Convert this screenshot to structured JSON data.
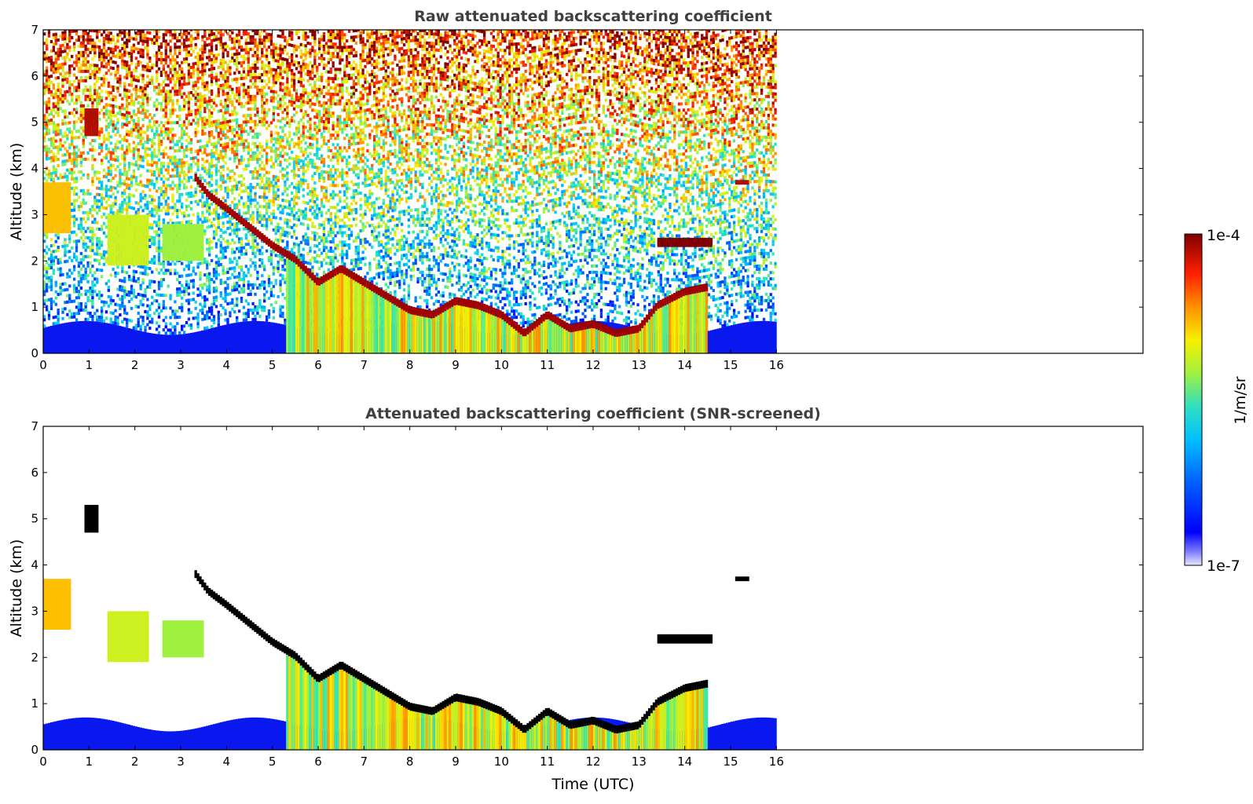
{
  "chart_data": [
    {
      "type": "heatmap",
      "title": "Raw attenuated backscattering coefficient",
      "xlabel": "",
      "ylabel": "Altitude (km)",
      "xlim": [
        0,
        24
      ],
      "ylim": [
        0,
        7
      ],
      "x_ticks": [
        "0",
        "1",
        "2",
        "3",
        "4",
        "5",
        "6",
        "7",
        "8",
        "9",
        "10",
        "11",
        "12",
        "13",
        "14",
        "15",
        "16"
      ],
      "y_ticks": [
        "0",
        "1",
        "2",
        "3",
        "4",
        "5",
        "6",
        "7"
      ],
      "data_extent_hours": [
        0,
        16
      ],
      "screened": false,
      "cloud_features": [
        {
          "name": "layer-low-early",
          "t_start": 0.0,
          "t_end": 0.6,
          "alt_km": [
            2.6,
            3.7
          ],
          "level": 0.7
        },
        {
          "name": "fall-streak-5km",
          "t_start": 0.9,
          "t_end": 1.2,
          "alt_km": [
            4.7,
            5.3
          ],
          "level": 0.95
        },
        {
          "name": "virga-1.5-2h",
          "t_start": 1.4,
          "t_end": 2.3,
          "alt_km": [
            1.9,
            3.0
          ],
          "level": 0.6
        },
        {
          "name": "layer-2.5-3.5h",
          "t_start": 2.6,
          "t_end": 3.5,
          "alt_km": [
            2.0,
            2.8
          ],
          "level": 0.55
        },
        {
          "name": "descending-cloud-base",
          "points": [
            [
              3.3,
              3.8
            ],
            [
              3.6,
              3.4
            ],
            [
              4.0,
              3.1
            ],
            [
              4.5,
              2.7
            ],
            [
              5.0,
              2.3
            ],
            [
              5.5,
              2.0
            ],
            [
              6.0,
              1.5
            ],
            [
              6.5,
              1.8
            ],
            [
              7.0,
              1.5
            ],
            [
              7.5,
              1.2
            ],
            [
              8.0,
              0.9
            ],
            [
              8.5,
              0.8
            ],
            [
              9.0,
              1.1
            ],
            [
              9.5,
              1.0
            ],
            [
              10.0,
              0.8
            ],
            [
              10.5,
              0.4
            ],
            [
              11.0,
              0.8
            ],
            [
              11.5,
              0.5
            ],
            [
              12.0,
              0.6
            ],
            [
              12.5,
              0.4
            ],
            [
              13.0,
              0.5
            ],
            [
              13.4,
              1.0
            ],
            [
              14.0,
              1.3
            ],
            [
              14.5,
              1.4
            ]
          ],
          "level": 1.0
        },
        {
          "name": "layer-2.3km-late",
          "t_start": 13.4,
          "t_end": 14.6,
          "alt_km": [
            2.3,
            2.5
          ],
          "level": 1.0
        },
        {
          "name": "layer-3.7km-late",
          "t_start": 15.1,
          "t_end": 15.4,
          "alt_km": [
            3.65,
            3.75
          ],
          "level": 0.95
        },
        {
          "name": "boundary-layer",
          "t_start": 0.0,
          "t_end": 16.0,
          "alt_km": [
            0.0,
            0.6
          ],
          "level": 0.2
        }
      ]
    },
    {
      "type": "heatmap",
      "title": "Attenuated backscattering coefficient (SNR-screened)",
      "xlabel": "Time (UTC)",
      "ylabel": "Altitude (km)",
      "xlim": [
        0,
        24
      ],
      "ylim": [
        0,
        7
      ],
      "x_ticks": [
        "0",
        "1",
        "2",
        "3",
        "4",
        "5",
        "6",
        "7",
        "8",
        "9",
        "10",
        "11",
        "12",
        "13",
        "14",
        "15",
        "16"
      ],
      "y_ticks": [
        "0",
        "1",
        "2",
        "3",
        "4",
        "5",
        "6",
        "7"
      ],
      "data_extent_hours": [
        0,
        16
      ],
      "screened": true
    }
  ],
  "colorbar": {
    "min_label": "1e-7",
    "max_label": "1e-4",
    "unit_label": "1/m/sr",
    "colormap": "jet",
    "colors": [
      "#f0f0ff",
      "#0000ff",
      "#00a0ff",
      "#20e0c0",
      "#a0f040",
      "#f0f000",
      "#ff8000",
      "#ff2000",
      "#800000"
    ]
  }
}
